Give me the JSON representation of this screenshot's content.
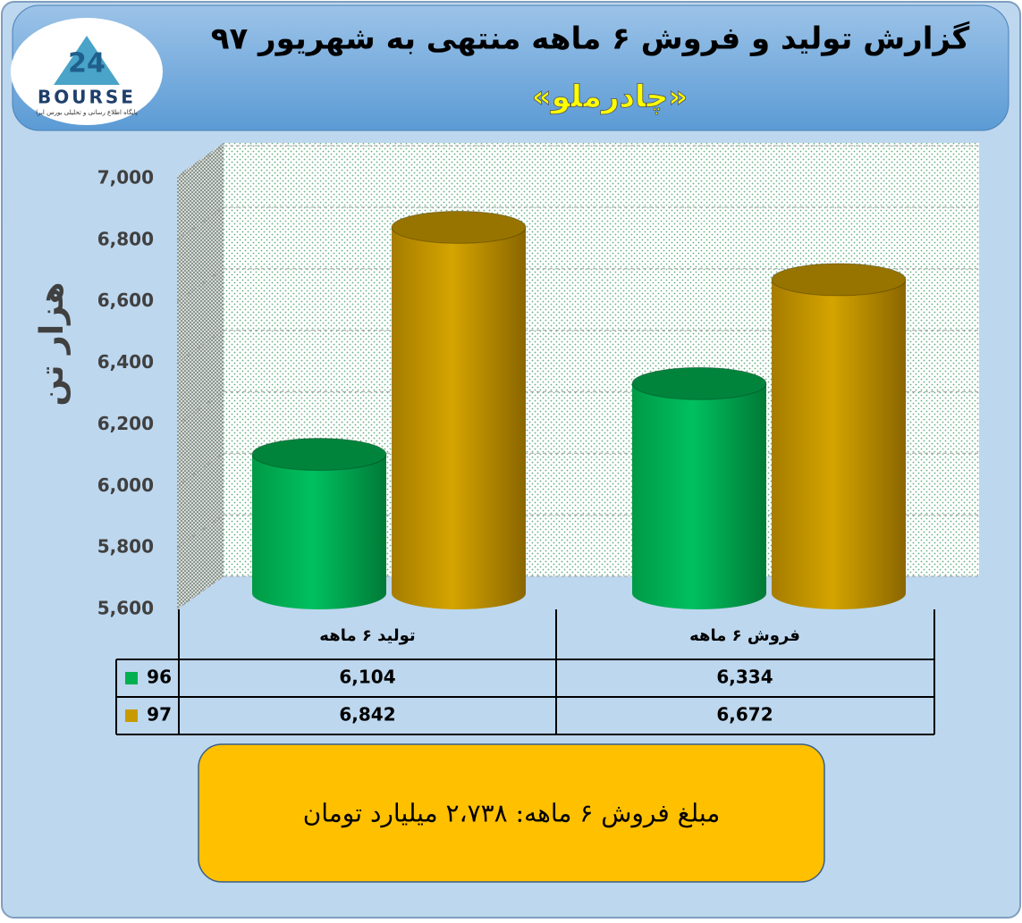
{
  "chart_data": {
    "type": "bar3d",
    "title": "گزارش تولید و فروش ۶ ماهه منتهی به شهریور ۹۷",
    "subtitle": "«چادرملو»",
    "y_label": "هزار تن",
    "logo": {
      "number": "24",
      "name": "BOURSE",
      "caption": "پایگاه اطلاع رسانی و تحلیلی بورس ایرا"
    },
    "categories": [
      "تولید ۶ ماهه",
      "فروش ۶ ماهه"
    ],
    "series": [
      {
        "name": "96",
        "color": "#00b050",
        "values": [
          6104,
          6334
        ],
        "value_labels": [
          "6,104",
          "6,334"
        ]
      },
      {
        "name": "97",
        "color": "#c99a00",
        "values": [
          6842,
          6672
        ],
        "value_labels": [
          "6,842",
          "6,672"
        ]
      }
    ],
    "ylim": [
      5600,
      7000
    ],
    "yticks": [
      {
        "value": 5600,
        "label": "5,600"
      },
      {
        "value": 5800,
        "label": "5,800"
      },
      {
        "value": 6000,
        "label": "6,000"
      },
      {
        "value": 6200,
        "label": "6,200"
      },
      {
        "value": 6400,
        "label": "6,400"
      },
      {
        "value": 6600,
        "label": "6,600"
      },
      {
        "value": 6800,
        "label": "6,800"
      },
      {
        "value": 7000,
        "label": "7,000"
      }
    ],
    "grid": true,
    "note": "مبلغ فروش ۶ ماهه: ۲،۷۳۸ میلیارد تومان"
  }
}
